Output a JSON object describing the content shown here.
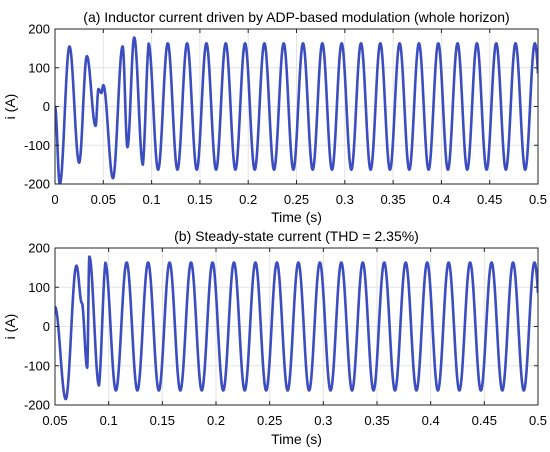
{
  "chart_data": [
    {
      "type": "line",
      "title": "(a) Inductor current driven by ADP-based modulation (whole horizon)",
      "xlabel": "Time (s)",
      "ylabel": "i (A)",
      "xlim": [
        0,
        0.5
      ],
      "ylim": [
        -200,
        200
      ],
      "xticks": [
        0,
        0.05,
        0.1,
        0.15,
        0.2,
        0.25,
        0.3,
        0.35,
        0.4,
        0.45,
        0.5
      ],
      "xtick_labels": [
        "0",
        "0.05",
        "0.1",
        "0.15",
        "0.2",
        "0.25",
        "0.3",
        "0.35",
        "0.4",
        "0.45",
        "0.5"
      ],
      "yticks": [
        -200,
        -100,
        0,
        100,
        200
      ],
      "ytick_labels": [
        "-200",
        "-100",
        "0",
        "100",
        "200"
      ],
      "grid": true,
      "frequency_hz": 50,
      "series": [
        {
          "color": "#3b4dbf",
          "waveform": "sinusoid",
          "steady_amplitude": 163,
          "transient_extrema": [
            {
              "t": 0.0,
              "v": 0
            },
            {
              "t": 0.005,
              "v": -200
            },
            {
              "t": 0.015,
              "v": 155
            },
            {
              "t": 0.025,
              "v": -145
            },
            {
              "t": 0.033,
              "v": 130
            },
            {
              "t": 0.042,
              "v": -50
            },
            {
              "t": 0.045,
              "v": 45
            },
            {
              "t": 0.048,
              "v": 35
            },
            {
              "t": 0.05,
              "v": 55
            },
            {
              "t": 0.06,
              "v": -185
            },
            {
              "t": 0.07,
              "v": 155
            },
            {
              "t": 0.075,
              "v": -105
            },
            {
              "t": 0.082,
              "v": 178
            },
            {
              "t": 0.091,
              "v": -150
            }
          ]
        }
      ]
    },
    {
      "type": "line",
      "title": "(b) Steady-state current (THD = 2.35%)",
      "xlabel": "Time (s)",
      "ylabel": "i (A)",
      "xlim": [
        0.05,
        0.5
      ],
      "ylim": [
        -200,
        200
      ],
      "xticks": [
        0.05,
        0.1,
        0.15,
        0.2,
        0.25,
        0.3,
        0.35,
        0.4,
        0.45,
        0.5
      ],
      "xtick_labels": [
        "0.05",
        "0.1",
        "0.15",
        "0.2",
        "0.25",
        "0.3",
        "0.35",
        "0.4",
        "0.45",
        "0.5"
      ],
      "yticks": [
        -200,
        -100,
        0,
        100,
        200
      ],
      "ytick_labels": [
        "-200",
        "-100",
        "0",
        "100",
        "200"
      ],
      "grid": true,
      "frequency_hz": 50,
      "series": [
        {
          "color": "#3b4dbf",
          "waveform": "sinusoid",
          "steady_amplitude": 163,
          "transient_extrema": [
            {
              "t": 0.05,
              "v": 50
            },
            {
              "t": 0.06,
              "v": -185
            },
            {
              "t": 0.07,
              "v": 155
            },
            {
              "t": 0.075,
              "v": 60
            },
            {
              "t": 0.08,
              "v": -105
            },
            {
              "t": 0.082,
              "v": 178
            },
            {
              "t": 0.091,
              "v": -150
            }
          ]
        }
      ]
    }
  ]
}
